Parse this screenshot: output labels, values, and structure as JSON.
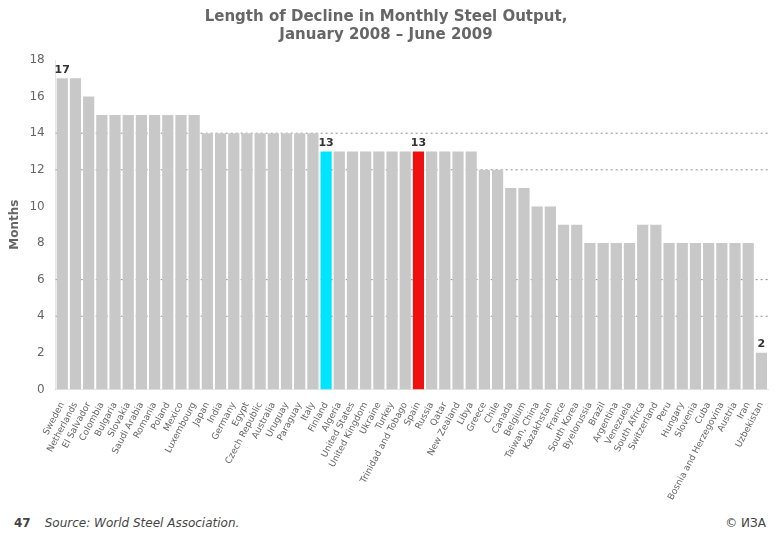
{
  "chart_data": {
    "type": "bar",
    "title": "Length of Decline in Monthly Steel Output,\nJanuary 2008 – June 2009",
    "y_label": "Months",
    "categories": [
      "Sweden",
      "Netherlands",
      "El Salvador",
      "Colombia",
      "Bulgaria",
      "Slovakia",
      "Saudi Arabia",
      "Romania",
      "Poland",
      "Mexico",
      "Luxembourg",
      "Japan",
      "India",
      "Germany",
      "Egypt",
      "Czech Republic",
      "Australia",
      "Uruguay",
      "Paraguay",
      "Italy",
      "Finland",
      "Algeria",
      "United States",
      "United Kingdom",
      "Ukraine",
      "Turkey",
      "Trinidad and Tobago",
      "Spain",
      "Russia",
      "Qatar",
      "New Zealand",
      "Libya",
      "Greece",
      "Chile",
      "Canada",
      "Belgium",
      "Taiwan, China",
      "Kazakhstan",
      "France",
      "South Korea",
      "Byelorussia",
      "Brazil",
      "Argentina",
      "Venezuela",
      "South Africa",
      "Switzerland",
      "Peru",
      "Hungary",
      "Slovenia",
      "Cuba",
      "Bosnia and Herzegovina",
      "Austria",
      "Iran",
      "Uzbekistan"
    ],
    "values": [
      17,
      17,
      16,
      15,
      15,
      15,
      15,
      15,
      15,
      15,
      15,
      14,
      14,
      14,
      14,
      14,
      14,
      14,
      14,
      14,
      13,
      13,
      13,
      13,
      13,
      13,
      13,
      13,
      13,
      13,
      13,
      13,
      12,
      12,
      11,
      11,
      10,
      10,
      9,
      9,
      8,
      8,
      8,
      8,
      9,
      9,
      8,
      8,
      8,
      8,
      8,
      8,
      8,
      2
    ],
    "colors": [
      "#c8c8c8",
      "#c8c8c8",
      "#c8c8c8",
      "#c8c8c8",
      "#c8c8c8",
      "#c8c8c8",
      "#c8c8c8",
      "#c8c8c8",
      "#c8c8c8",
      "#c8c8c8",
      "#c8c8c8",
      "#c8c8c8",
      "#c8c8c8",
      "#c8c8c8",
      "#c8c8c8",
      "#c8c8c8",
      "#c8c8c8",
      "#c8c8c8",
      "#c8c8c8",
      "#c8c8c8",
      "#00e5ff",
      "#c8c8c8",
      "#c8c8c8",
      "#c8c8c8",
      "#c8c8c8",
      "#c8c8c8",
      "#c8c8c8",
      "#ee1111",
      "#c8c8c8",
      "#c8c8c8",
      "#c8c8c8",
      "#c8c8c8",
      "#c8c8c8",
      "#c8c8c8",
      "#c8c8c8",
      "#c8c8c8",
      "#c8c8c8",
      "#c8c8c8",
      "#c8c8c8",
      "#c8c8c8",
      "#c8c8c8",
      "#c8c8c8",
      "#c8c8c8",
      "#c8c8c8",
      "#c8c8c8",
      "#c8c8c8",
      "#c8c8c8",
      "#c8c8c8",
      "#c8c8c8",
      "#c8c8c8",
      "#c8c8c8",
      "#c8c8c8",
      "#c8c8c8",
      "#c8c8c8"
    ],
    "ylim": [
      0,
      18
    ],
    "yticks": [
      0,
      2,
      4,
      6,
      8,
      10,
      12,
      14,
      16,
      18
    ],
    "grid": false,
    "reference_lines": [
      14,
      12,
      6,
      4
    ],
    "annotations": [
      {
        "category": "Sweden",
        "text": "17"
      },
      {
        "category": "Finland",
        "text": "13"
      },
      {
        "category": "Spain",
        "text": "13"
      },
      {
        "category": "Uzbekistan",
        "text": "2"
      }
    ],
    "source": "Source: World Steel Association.",
    "page_number": "47",
    "copyright": "© ИЗА"
  }
}
